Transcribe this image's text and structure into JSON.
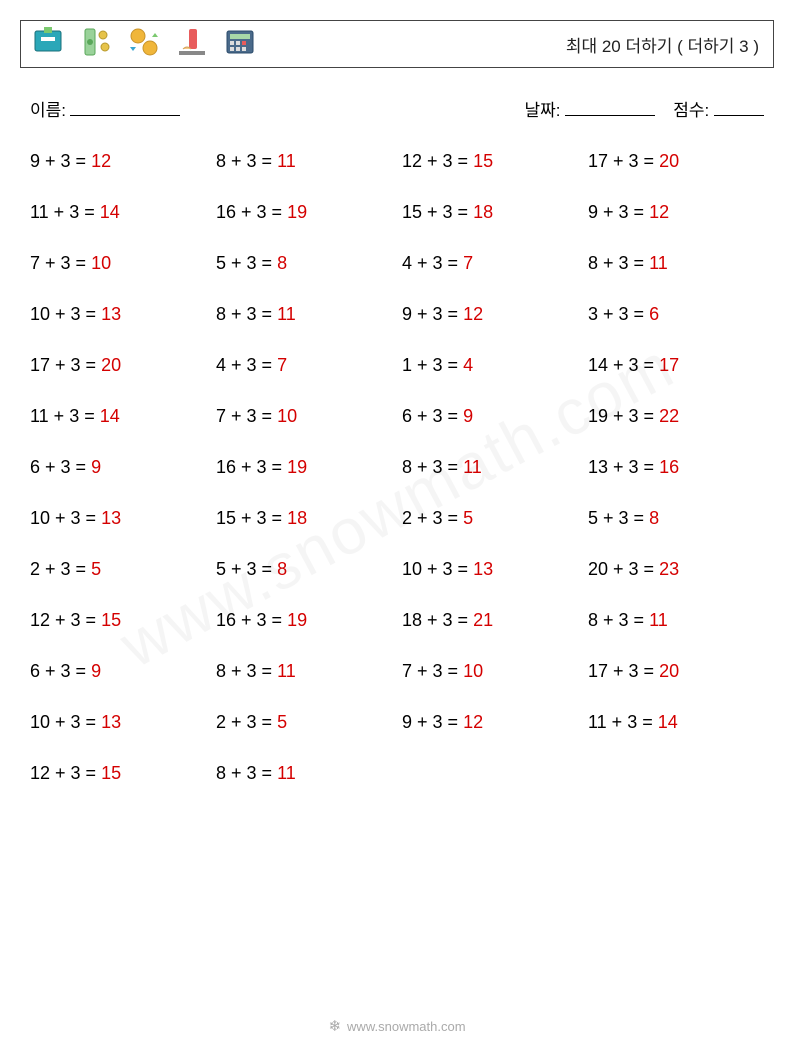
{
  "header": {
    "title": "최대 20 더하기 ( 더하기 3 )"
  },
  "meta": {
    "name_label": "이름:",
    "date_label": "날짜:",
    "score_label": "점수:"
  },
  "style": {
    "text_color": "#000000",
    "answer_color": "#d40000",
    "background_color": "#ffffff",
    "border_color": "#444444",
    "font_size_problem": 18,
    "font_size_title": 17,
    "columns": 4,
    "row_gap": 30
  },
  "problems": [
    {
      "a": 9,
      "b": 3,
      "ans": 12
    },
    {
      "a": 8,
      "b": 3,
      "ans": 11
    },
    {
      "a": 12,
      "b": 3,
      "ans": 15
    },
    {
      "a": 17,
      "b": 3,
      "ans": 20
    },
    {
      "a": 11,
      "b": 3,
      "ans": 14
    },
    {
      "a": 16,
      "b": 3,
      "ans": 19
    },
    {
      "a": 15,
      "b": 3,
      "ans": 18
    },
    {
      "a": 9,
      "b": 3,
      "ans": 12
    },
    {
      "a": 7,
      "b": 3,
      "ans": 10
    },
    {
      "a": 5,
      "b": 3,
      "ans": 8
    },
    {
      "a": 4,
      "b": 3,
      "ans": 7
    },
    {
      "a": 8,
      "b": 3,
      "ans": 11
    },
    {
      "a": 10,
      "b": 3,
      "ans": 13
    },
    {
      "a": 8,
      "b": 3,
      "ans": 11
    },
    {
      "a": 9,
      "b": 3,
      "ans": 12
    },
    {
      "a": 3,
      "b": 3,
      "ans": 6
    },
    {
      "a": 17,
      "b": 3,
      "ans": 20
    },
    {
      "a": 4,
      "b": 3,
      "ans": 7
    },
    {
      "a": 1,
      "b": 3,
      "ans": 4
    },
    {
      "a": 14,
      "b": 3,
      "ans": 17
    },
    {
      "a": 11,
      "b": 3,
      "ans": 14
    },
    {
      "a": 7,
      "b": 3,
      "ans": 10
    },
    {
      "a": 6,
      "b": 3,
      "ans": 9
    },
    {
      "a": 19,
      "b": 3,
      "ans": 22
    },
    {
      "a": 6,
      "b": 3,
      "ans": 9
    },
    {
      "a": 16,
      "b": 3,
      "ans": 19
    },
    {
      "a": 8,
      "b": 3,
      "ans": 11
    },
    {
      "a": 13,
      "b": 3,
      "ans": 16
    },
    {
      "a": 10,
      "b": 3,
      "ans": 13
    },
    {
      "a": 15,
      "b": 3,
      "ans": 18
    },
    {
      "a": 2,
      "b": 3,
      "ans": 5
    },
    {
      "a": 5,
      "b": 3,
      "ans": 8
    },
    {
      "a": 2,
      "b": 3,
      "ans": 5
    },
    {
      "a": 5,
      "b": 3,
      "ans": 8
    },
    {
      "a": 10,
      "b": 3,
      "ans": 13
    },
    {
      "a": 20,
      "b": 3,
      "ans": 23
    },
    {
      "a": 12,
      "b": 3,
      "ans": 15
    },
    {
      "a": 16,
      "b": 3,
      "ans": 19
    },
    {
      "a": 18,
      "b": 3,
      "ans": 21
    },
    {
      "a": 8,
      "b": 3,
      "ans": 11
    },
    {
      "a": 6,
      "b": 3,
      "ans": 9
    },
    {
      "a": 8,
      "b": 3,
      "ans": 11
    },
    {
      "a": 7,
      "b": 3,
      "ans": 10
    },
    {
      "a": 17,
      "b": 3,
      "ans": 20
    },
    {
      "a": 10,
      "b": 3,
      "ans": 13
    },
    {
      "a": 2,
      "b": 3,
      "ans": 5
    },
    {
      "a": 9,
      "b": 3,
      "ans": 12
    },
    {
      "a": 11,
      "b": 3,
      "ans": 14
    },
    {
      "a": 12,
      "b": 3,
      "ans": 15
    },
    {
      "a": 8,
      "b": 3,
      "ans": 11
    }
  ],
  "watermark": "www.snowmath.com",
  "footer": {
    "text": "www.snowmath.com"
  }
}
